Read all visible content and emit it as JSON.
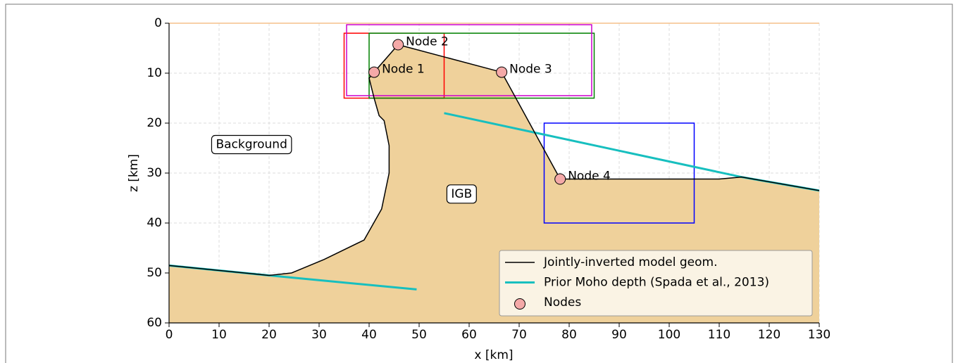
{
  "chart_data": {
    "type": "geometry",
    "xlabel": "x [km]",
    "ylabel": "z [km]",
    "xlim": [
      0,
      130
    ],
    "xticks": [
      0,
      10,
      20,
      30,
      40,
      50,
      60,
      70,
      80,
      90,
      100,
      110,
      120,
      130
    ],
    "ylim": [
      0,
      60
    ],
    "yticks": [
      0,
      10,
      20,
      30,
      40,
      50,
      60
    ],
    "y_inverted": true,
    "grid": true,
    "legend": "lower right",
    "geometry": {
      "name": "Jointly-inverted model geom.",
      "color": "#000000",
      "fill_color": "#efd19b",
      "x": [
        0,
        20,
        24.5,
        31,
        39,
        42.5,
        44,
        44,
        43,
        42,
        41,
        40,
        41,
        45.8,
        66.5,
        78.2,
        110,
        114.5,
        130
      ],
      "y": [
        48.5,
        50.5,
        50,
        47.3,
        43.4,
        37.2,
        30,
        24.5,
        19.5,
        18.5,
        15,
        11,
        9.8,
        4.3,
        9.8,
        31.2,
        31.2,
        30.8,
        33.5
      ]
    },
    "moho": {
      "name": "Prior Moho depth (Spada et al., 2013)",
      "color": "#17bfbf",
      "x": [
        0,
        20,
        49.5,
        null,
        55,
        114.5,
        130
      ],
      "y": [
        48.5,
        50.5,
        53.3,
        null,
        18,
        30.8,
        33.5
      ]
    },
    "nodes": {
      "name": "Nodes",
      "color": "#f4a9a8",
      "x": [
        41,
        45.8,
        66.5,
        78.2
      ],
      "y": [
        9.8,
        4.3,
        9.8,
        31.2
      ],
      "labels": [
        "Node 1",
        "Node 2",
        "Node 3",
        "Node 4"
      ]
    },
    "boxes": [
      {
        "color": "#ff0000",
        "x": [
          35,
          55
        ],
        "y": [
          2,
          15
        ]
      },
      {
        "color": "#008000",
        "x": [
          40,
          85
        ],
        "y": [
          2,
          15
        ]
      },
      {
        "color": "#cc00cc",
        "x": [
          35.5,
          84.5
        ],
        "y": [
          0.3,
          14.5
        ]
      },
      {
        "color": "#0000ff",
        "x": [
          75,
          105
        ],
        "y": [
          20,
          40
        ]
      }
    ],
    "surface": {
      "color": "#f5c08a",
      "y": 0
    },
    "annotations": [
      {
        "text": "Background",
        "x": 16.5,
        "y": 24.3
      },
      {
        "text": "IGB",
        "x": 58.5,
        "y": 34.2
      }
    ]
  }
}
